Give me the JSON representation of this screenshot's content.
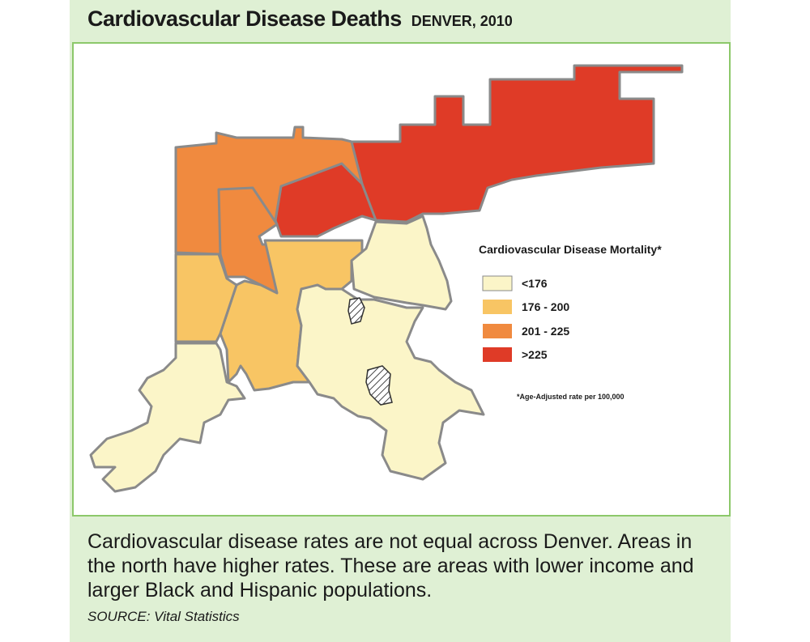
{
  "header": {
    "title": "Cardiovascular Disease Deaths",
    "subtitle": "DENVER, 2010"
  },
  "legend": {
    "title": "Cardiovascular Disease Mortality*",
    "items": [
      {
        "label": "<176",
        "color": "#fbf5c8"
      },
      {
        "label": "176 - 200",
        "color": "#f8c564"
      },
      {
        "label": "201 - 225",
        "color": "#f08a3f"
      },
      {
        "label": ">225",
        "color": "#df3b27"
      }
    ],
    "footnote": "*Age-Adjusted rate per 100,000"
  },
  "caption": "Cardiovascular disease rates are not equal across Denver. Areas in the north have higher rates. These are areas with lower income and larger Black and Hispanic populations.",
  "source": "SOURCE: Vital Statistics",
  "colors": {
    "border": "#8a8a8a",
    "panel_bg": "#dff0d4",
    "frame": "#8cc86a"
  }
}
